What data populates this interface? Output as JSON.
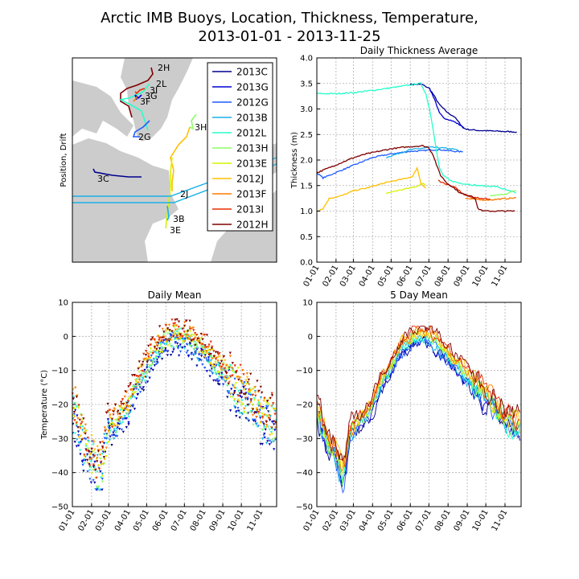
{
  "figure": {
    "title": "Arctic IMB Buoys, Location, Thickness, Temperature,",
    "subtitle": "2013-01-01 - 2013-11-25"
  },
  "colors": {
    "2013C": "#00008f",
    "2013G": "#0000d4",
    "2012G": "#1e5cff",
    "2013B": "#18b2e6",
    "2012L": "#26ffc9",
    "2013H": "#8cff66",
    "2013E": "#d6f400",
    "2012J": "#ffbf00",
    "2013F": "#ff7a00",
    "2013I": "#e82d00",
    "2012H": "#800000",
    "land": "#cccccc",
    "ocean": "#ffffff",
    "grid": "#b0b0b0"
  },
  "months": [
    "01-01",
    "02-01",
    "03-01",
    "04-01",
    "05-01",
    "06-01",
    "07-01",
    "08-01",
    "09-01",
    "10-01",
    "11-01"
  ],
  "chart_data": [
    {
      "type": "scatter",
      "panel": "map",
      "ylabel": "Position, Drift",
      "legend_position": "top-right",
      "legend": [
        "2013C",
        "2013G",
        "2012G",
        "2013B",
        "2012L",
        "2013H",
        "2013E",
        "2012J",
        "2013F",
        "2013I",
        "2012H"
      ],
      "buoy_labels": [
        "2H",
        "2L",
        "3I",
        "3G",
        "3F",
        "2G",
        "3H",
        "3C",
        "2J",
        "3B",
        "3E"
      ]
    },
    {
      "type": "line",
      "panel": "thickness",
      "title": "Daily Thickness Average",
      "xlabel": "",
      "ylabel": "Thickness (m)",
      "ylim": [
        0.0,
        4.0
      ],
      "yticks": [
        "0.0",
        "0.5",
        "1.0",
        "1.5",
        "2.0",
        "2.5",
        "3.0",
        "3.5",
        "4.0"
      ],
      "x_range_days": [
        0,
        330
      ],
      "series": [
        {
          "name": "2013C",
          "points": [
            [
              150,
              3.48
            ],
            [
              170,
              3.48
            ],
            [
              182,
              3.4
            ],
            [
              190,
              3.25
            ],
            [
              197,
              3.1
            ],
            [
              205,
              3.0
            ],
            [
              212,
              2.92
            ],
            [
              222,
              2.85
            ],
            [
              232,
              2.7
            ],
            [
              238,
              2.62
            ],
            [
              244,
              2.6
            ],
            [
              260,
              2.58
            ],
            [
              280,
              2.57
            ],
            [
              300,
              2.56
            ],
            [
              323,
              2.55
            ]
          ]
        },
        {
          "name": "2013G",
          "points": [
            [
              182,
              3.4
            ],
            [
              190,
              3.2
            ],
            [
              198,
              2.92
            ],
            [
              205,
              2.82
            ],
            [
              212,
              2.8
            ],
            [
              222,
              2.75
            ],
            [
              232,
              2.68
            ],
            [
              238,
              2.62
            ]
          ]
        },
        {
          "name": "2012G",
          "points": [
            [
              0,
              1.75
            ],
            [
              10,
              1.65
            ],
            [
              30,
              1.75
            ],
            [
              60,
              1.9
            ],
            [
              90,
              2.05
            ],
            [
              120,
              2.12
            ],
            [
              150,
              2.17
            ],
            [
              170,
              2.18
            ],
            [
              185,
              2.2
            ],
            [
              200,
              2.2
            ],
            [
              215,
              2.18
            ],
            [
              225,
              2.17
            ],
            [
              236,
              2.16
            ]
          ]
        },
        {
          "name": "2013B",
          "points": [
            [
              112,
              2.05
            ],
            [
              130,
              2.12
            ],
            [
              150,
              2.2
            ],
            [
              170,
              2.23
            ],
            [
              185,
              2.25
            ],
            [
              200,
              2.24
            ],
            [
              215,
              2.22
            ],
            [
              228,
              2.2
            ]
          ]
        },
        {
          "name": "2012L",
          "points": [
            [
              0,
              3.3
            ],
            [
              30,
              3.3
            ],
            [
              60,
              3.32
            ],
            [
              100,
              3.38
            ],
            [
              140,
              3.45
            ],
            [
              155,
              3.48
            ],
            [
              168,
              3.5
            ],
            [
              176,
              3.3
            ],
            [
              182,
              3.0
            ],
            [
              188,
              2.6
            ],
            [
              193,
              2.2
            ],
            [
              198,
              1.85
            ],
            [
              204,
              1.7
            ],
            [
              215,
              1.6
            ],
            [
              230,
              1.55
            ],
            [
              260,
              1.5
            ],
            [
              290,
              1.48
            ],
            [
              322,
              1.35
            ]
          ]
        },
        {
          "name": "2013H",
          "points": [
            [
              280,
              1.3
            ],
            [
              300,
              1.32
            ],
            [
              322,
              1.4
            ]
          ]
        },
        {
          "name": "2013E",
          "points": [
            [
              112,
              1.35
            ],
            [
              130,
              1.4
            ],
            [
              150,
              1.45
            ],
            [
              165,
              1.5
            ],
            [
              172,
              1.55
            ],
            [
              176,
              1.5
            ]
          ]
        },
        {
          "name": "2012J",
          "points": [
            [
              0,
              1.0
            ],
            [
              10,
              1.05
            ],
            [
              20,
              1.25
            ],
            [
              40,
              1.3
            ],
            [
              60,
              1.4
            ],
            [
              80,
              1.45
            ],
            [
              100,
              1.52
            ],
            [
              120,
              1.58
            ],
            [
              140,
              1.63
            ],
            [
              155,
              1.68
            ],
            [
              162,
              1.85
            ],
            [
              168,
              1.55
            ],
            [
              176,
              1.45
            ]
          ]
        },
        {
          "name": "2013F",
          "points": [
            [
              240,
              1.25
            ],
            [
              260,
              1.22
            ],
            [
              280,
              1.22
            ],
            [
              300,
              1.24
            ],
            [
              322,
              1.26
            ]
          ]
        },
        {
          "name": "2013I",
          "points": [
            [
              196,
              1.6
            ],
            [
              205,
              1.55
            ],
            [
              215,
              1.5
            ],
            [
              225,
              1.45
            ],
            [
              238,
              1.32
            ],
            [
              250,
              1.27
            ],
            [
              265,
              1.25
            ],
            [
              280,
              1.24
            ]
          ]
        },
        {
          "name": "2012H",
          "points": [
            [
              0,
              1.75
            ],
            [
              20,
              1.85
            ],
            [
              40,
              1.95
            ],
            [
              60,
              2.05
            ],
            [
              80,
              2.12
            ],
            [
              100,
              2.17
            ],
            [
              120,
              2.22
            ],
            [
              140,
              2.25
            ],
            [
              160,
              2.27
            ],
            [
              170,
              2.28
            ],
            [
              180,
              2.25
            ],
            [
              188,
              2.1
            ],
            [
              195,
              1.85
            ],
            [
              200,
              1.7
            ],
            [
              210,
              1.55
            ],
            [
              222,
              1.45
            ],
            [
              232,
              1.35
            ],
            [
              240,
              1.32
            ],
            [
              250,
              1.3
            ],
            [
              256,
              1.25
            ],
            [
              260,
              1.05
            ],
            [
              270,
              1.0
            ],
            [
              290,
              1.0
            ],
            [
              320,
              1.0
            ]
          ]
        }
      ]
    },
    {
      "type": "scatter",
      "panel": "daily",
      "title": "Daily Mean",
      "ylabel": "Temperature (°C)",
      "ylim": [
        -50,
        10
      ],
      "yticks": [
        "10",
        "0",
        "−10",
        "−20",
        "−30",
        "−40",
        "−50"
      ],
      "x_range_days": [
        0,
        330
      ],
      "envelope": [
        [
          0,
          -21
        ],
        [
          8,
          -24
        ],
        [
          15,
          -30
        ],
        [
          22,
          -34
        ],
        [
          30,
          -35
        ],
        [
          37,
          -39
        ],
        [
          42,
          -40
        ],
        [
          47,
          -38
        ],
        [
          52,
          -32
        ],
        [
          58,
          -27
        ],
        [
          65,
          -26
        ],
        [
          75,
          -24
        ],
        [
          82,
          -22
        ],
        [
          90,
          -20
        ],
        [
          100,
          -15
        ],
        [
          108,
          -12
        ],
        [
          115,
          -10
        ],
        [
          122,
          -8
        ],
        [
          130,
          -5
        ],
        [
          140,
          -3
        ],
        [
          150,
          -1
        ],
        [
          160,
          0
        ],
        [
          170,
          0
        ],
        [
          180,
          0
        ],
        [
          190,
          -1
        ],
        [
          200,
          -3
        ],
        [
          210,
          -4
        ],
        [
          220,
          -6
        ],
        [
          230,
          -8
        ],
        [
          240,
          -10
        ],
        [
          250,
          -12
        ],
        [
          260,
          -14
        ],
        [
          270,
          -16
        ],
        [
          280,
          -18
        ],
        [
          290,
          -20
        ],
        [
          300,
          -22
        ],
        [
          310,
          -24
        ],
        [
          320,
          -25
        ],
        [
          328,
          -25
        ]
      ]
    },
    {
      "type": "line",
      "panel": "fiveday",
      "title": "5 Day Mean",
      "ylim": [
        -50,
        10
      ],
      "yticks": [
        "10",
        "0",
        "−10",
        "−20",
        "−30",
        "−40",
        "−50"
      ],
      "x_range_days": [
        0,
        330
      ],
      "envelope": [
        [
          0,
          -22
        ],
        [
          8,
          -26
        ],
        [
          15,
          -30
        ],
        [
          22,
          -33
        ],
        [
          30,
          -34
        ],
        [
          37,
          -38
        ],
        [
          42,
          -41
        ],
        [
          47,
          -37
        ],
        [
          52,
          -30
        ],
        [
          58,
          -27
        ],
        [
          65,
          -26
        ],
        [
          75,
          -24
        ],
        [
          82,
          -22
        ],
        [
          90,
          -20
        ],
        [
          100,
          -15
        ],
        [
          108,
          -12
        ],
        [
          115,
          -10
        ],
        [
          122,
          -8
        ],
        [
          130,
          -5
        ],
        [
          140,
          -3
        ],
        [
          150,
          -1
        ],
        [
          160,
          0
        ],
        [
          170,
          0.5
        ],
        [
          180,
          0.5
        ],
        [
          190,
          -1
        ],
        [
          200,
          -3
        ],
        [
          210,
          -5
        ],
        [
          220,
          -7
        ],
        [
          230,
          -9
        ],
        [
          240,
          -11
        ],
        [
          250,
          -13
        ],
        [
          260,
          -15
        ],
        [
          270,
          -17
        ],
        [
          280,
          -19
        ],
        [
          290,
          -21
        ],
        [
          300,
          -23
        ],
        [
          310,
          -25
        ],
        [
          320,
          -26
        ],
        [
          328,
          -26
        ]
      ]
    }
  ]
}
